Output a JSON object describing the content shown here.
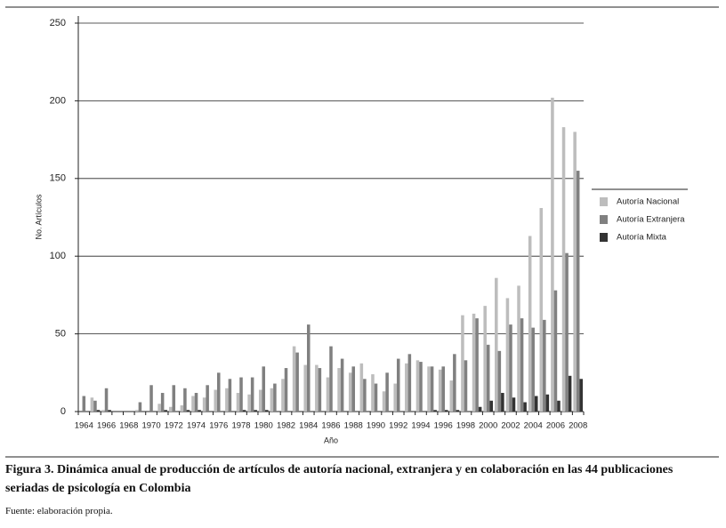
{
  "chart_data": {
    "type": "bar",
    "y_label": "No. Artículos",
    "x_label": "Año",
    "categories": [
      "1964",
      null,
      "1966",
      null,
      "1968",
      null,
      "1970",
      null,
      "1972",
      null,
      "1974",
      null,
      "1976",
      null,
      "1978",
      null,
      "1980",
      null,
      "1982",
      null,
      "1984",
      null,
      "1986",
      null,
      "1988",
      null,
      "1990",
      null,
      "1992",
      null,
      "1994",
      null,
      "1996",
      null,
      "1998",
      null,
      "2000",
      null,
      "2002",
      null,
      "2004",
      null,
      "2006",
      null,
      "2008"
    ],
    "series": [
      {
        "name": "Autoría Nacional",
        "color": "#bdbdbd",
        "values": [
          0,
          9,
          1,
          0,
          0,
          1,
          0,
          5,
          3,
          4,
          10,
          9,
          14,
          15,
          12,
          11,
          14,
          15,
          21,
          42,
          30,
          30,
          22,
          28,
          25,
          31,
          24,
          13,
          18,
          31,
          33,
          29,
          27,
          20,
          62,
          63,
          68,
          86,
          73,
          81,
          113,
          131,
          202,
          183,
          180
        ]
      },
      {
        "name": "Autoría Extranjera",
        "color": "#808080",
        "values": [
          10,
          7,
          15,
          0,
          0,
          6,
          17,
          12,
          17,
          15,
          12,
          17,
          25,
          21,
          22,
          22,
          29,
          18,
          28,
          38,
          56,
          28,
          42,
          34,
          29,
          21,
          18,
          25,
          34,
          37,
          32,
          29,
          29,
          37,
          33,
          60,
          43,
          39,
          56,
          60,
          54,
          59,
          78,
          102,
          155
        ]
      },
      {
        "name": "Autoría Mixta",
        "color": "#333333",
        "values": [
          0,
          1,
          1,
          0,
          0,
          0,
          0,
          1,
          0,
          1,
          1,
          0,
          0,
          0,
          1,
          1,
          1,
          0,
          0,
          0,
          0,
          0,
          0,
          0,
          0,
          0,
          0,
          0,
          0,
          0,
          0,
          1,
          1,
          1,
          0,
          3,
          7,
          12,
          9,
          6,
          10,
          11,
          7,
          23,
          21
        ]
      }
    ],
    "ylim": [
      0,
      250
    ],
    "yticks": [
      0,
      50,
      100,
      150,
      200,
      250
    ],
    "grid": true,
    "legend": "right"
  },
  "caption": "Figura 3. Dinámica anual de producción de artículos de autoría nacional, extranjera y en colaboración en las 44 publicaciones seriadas de psicología en Colombia",
  "source": "Fuente: elaboración propia."
}
